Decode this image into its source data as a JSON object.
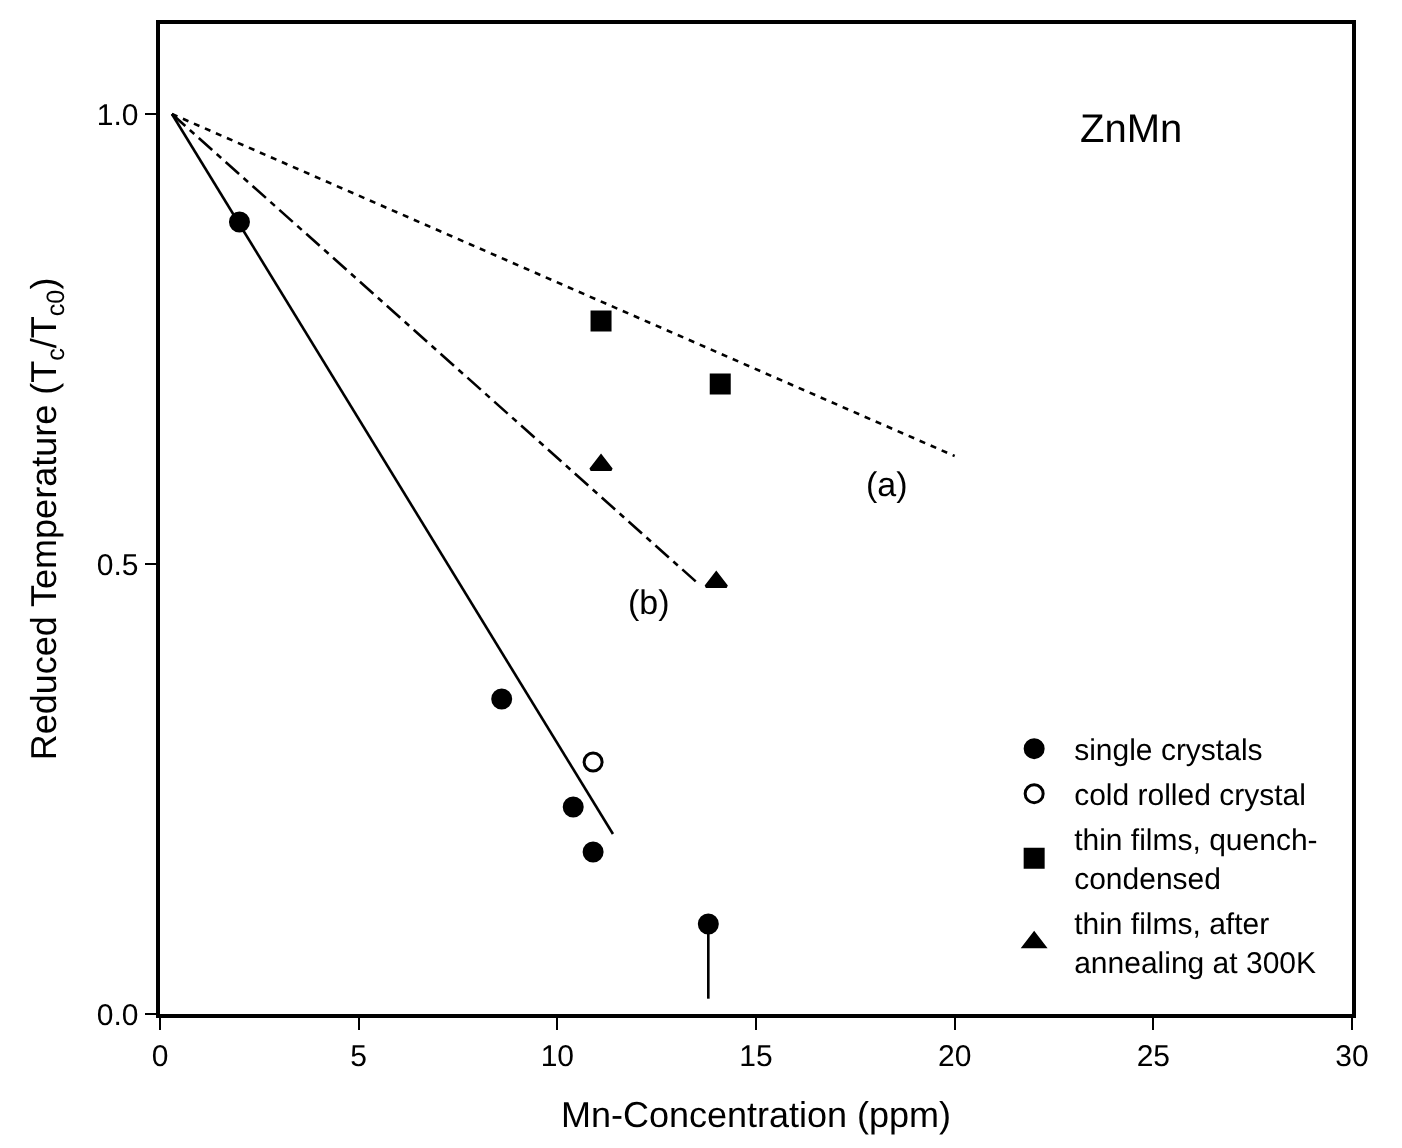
{
  "chart_data": {
    "type": "scatter",
    "xlabel": "Mn-Concentration (ppm)",
    "ylabel": "Reduced Temperature (T$_{c}$/T$_{c0}$)",
    "xlim": [
      0,
      30
    ],
    "xticks": [
      0,
      5,
      10,
      15,
      20,
      25,
      30
    ],
    "ylim": [
      0,
      1.1
    ],
    "yticks": [
      {
        "value": 0,
        "label": "0.0"
      },
      0.5,
      {
        "value": 1,
        "label": "1.0"
      }
    ],
    "legend": "bottom right",
    "series": [
      {
        "name": "single crystals",
        "color": "#000000",
        "marker": "circle",
        "x": [
          2.0,
          8.6,
          10.4,
          10.9,
          13.8
        ],
        "values": [
          0.88,
          0.35,
          0.23,
          0.18,
          0.1
        ],
        "errors": [
          null,
          null,
          null,
          null,
          [
            0.017,
            0.1
          ]
        ]
      },
      {
        "name": "cold rolled crystal",
        "color": "#000000",
        "marker": "circle-open",
        "x": [
          10.9
        ],
        "values": [
          0.28
        ]
      },
      {
        "name": "thin films, quench-\ncondensed",
        "color": "#000000",
        "marker": "square",
        "x": [
          11.1,
          14.1
        ],
        "values": [
          0.77,
          0.7
        ]
      },
      {
        "name": "thin films, after\nannealing at 300K",
        "color": "#000000",
        "marker": "triangle",
        "x": [
          11.1,
          14.0
        ],
        "values": [
          0.61,
          0.48
        ]
      },
      {
        "type": "line",
        "color": "#000000",
        "line_style": "solid",
        "marker": "none",
        "x": [
          0.3,
          11.4
        ],
        "values": [
          1.0,
          0.2
        ]
      },
      {
        "type": "line",
        "color": "#000000",
        "line_style": "dashdot",
        "marker": "none",
        "x": [
          0.3,
          13.5
        ],
        "values": [
          1.0,
          0.48
        ]
      },
      {
        "type": "line",
        "color": "#000000",
        "line_style": "dotted",
        "marker": "none",
        "x": [
          0.3,
          20.0
        ],
        "values": [
          1.0,
          0.62
        ]
      }
    ],
    "annotations": [
      "(a)",
      "(b)",
      "ZnMn"
    ]
  }
}
